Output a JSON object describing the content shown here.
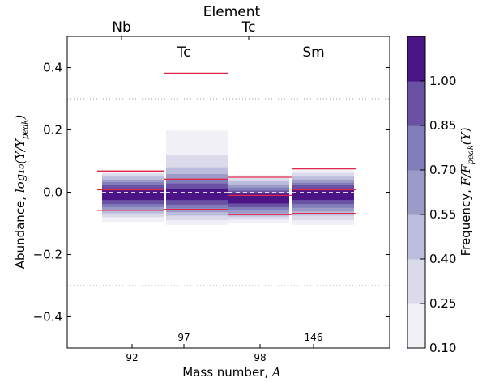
{
  "chart_data": {
    "type": "heatmap",
    "xlabel_text": "Mass number, ",
    "xlabel_var": "A",
    "ylabel_text": "Abundance, ",
    "ylabel_math": "log₁₀(Y/Y",
    "ylabel_sub": "peak",
    "ylabel_close": ")",
    "top_axis_title": "Element",
    "ylim": [
      -0.5,
      0.5
    ],
    "y_ticks": [
      0.4,
      0.2,
      0.0,
      -0.2,
      -0.4
    ],
    "y_tick_labels": [
      "0.4",
      "0.2",
      "0.0",
      "−0.2",
      "−0.4"
    ],
    "x_ticks": [
      "92",
      "98"
    ],
    "top_tick_labels": [
      "Nb",
      "Tc"
    ],
    "in_plot_element_labels": [
      "Tc",
      "Sm"
    ],
    "in_plot_mass_labels": [
      "97",
      "146"
    ],
    "reference_lines_y": [
      0.3,
      -0.3
    ],
    "colorbar": {
      "label_text": "Frequency, ",
      "label_math": "F/F",
      "label_sub": "peak",
      "label_close": "(Y)",
      "ticks": [
        "0.10",
        "0.25",
        "0.40",
        "0.55",
        "0.70",
        "0.85",
        "1.00"
      ],
      "band_colors": [
        "#f2f0f7",
        "#dadaeb",
        "#bcbddc",
        "#9e9ac8",
        "#807dba",
        "#6a51a3",
        "#4a1486"
      ]
    },
    "series": [
      {
        "name": "Nb-92",
        "bands": [
          {
            "lo": -0.095,
            "hi": 0.072,
            "level": 0
          },
          {
            "lo": -0.08,
            "hi": 0.06,
            "level": 1
          },
          {
            "lo": -0.068,
            "hi": 0.05,
            "level": 2
          },
          {
            "lo": -0.058,
            "hi": 0.04,
            "level": 3
          },
          {
            "lo": -0.048,
            "hi": 0.032,
            "level": 4
          },
          {
            "lo": -0.038,
            "hi": 0.022,
            "level": 5
          },
          {
            "lo": -0.025,
            "hi": 0.012,
            "level": 6
          }
        ],
        "red_lines": [
          0.068,
          0.008,
          -0.058
        ],
        "median": 0.0
      },
      {
        "name": "Tc-97",
        "bands": [
          {
            "lo": -0.105,
            "hi": 0.198,
            "level": 0
          },
          {
            "lo": -0.09,
            "hi": 0.118,
            "level": 1
          },
          {
            "lo": -0.075,
            "hi": 0.08,
            "level": 2
          },
          {
            "lo": -0.064,
            "hi": 0.058,
            "level": 3
          },
          {
            "lo": -0.052,
            "hi": 0.042,
            "level": 4
          },
          {
            "lo": -0.04,
            "hi": 0.028,
            "level": 5
          },
          {
            "lo": -0.025,
            "hi": 0.012,
            "level": 6
          }
        ],
        "red_lines": [
          0.382,
          0.042,
          -0.055
        ],
        "median": 0.0
      },
      {
        "name": "Tc-98",
        "bands": [
          {
            "lo": -0.1,
            "hi": 0.055,
            "level": 0
          },
          {
            "lo": -0.088,
            "hi": 0.045,
            "level": 1
          },
          {
            "lo": -0.078,
            "hi": 0.035,
            "level": 2
          },
          {
            "lo": -0.068,
            "hi": 0.025,
            "level": 3
          },
          {
            "lo": -0.058,
            "hi": 0.015,
            "level": 4
          },
          {
            "lo": -0.048,
            "hi": 0.005,
            "level": 5
          },
          {
            "lo": -0.036,
            "hi": -0.005,
            "level": 6
          }
        ],
        "red_lines": [
          0.048,
          -0.01,
          -0.072
        ],
        "median": 0.0
      },
      {
        "name": "Sm-146",
        "bands": [
          {
            "lo": -0.105,
            "hi": 0.075,
            "level": 0
          },
          {
            "lo": -0.09,
            "hi": 0.062,
            "level": 1
          },
          {
            "lo": -0.075,
            "hi": 0.05,
            "level": 2
          },
          {
            "lo": -0.062,
            "hi": 0.04,
            "level": 3
          },
          {
            "lo": -0.05,
            "hi": 0.03,
            "level": 4
          },
          {
            "lo": -0.038,
            "hi": 0.022,
            "level": 5
          },
          {
            "lo": -0.025,
            "hi": 0.012,
            "level": 6
          }
        ],
        "red_lines": [
          0.075,
          0.008,
          -0.068
        ],
        "median": 0.0
      }
    ]
  }
}
